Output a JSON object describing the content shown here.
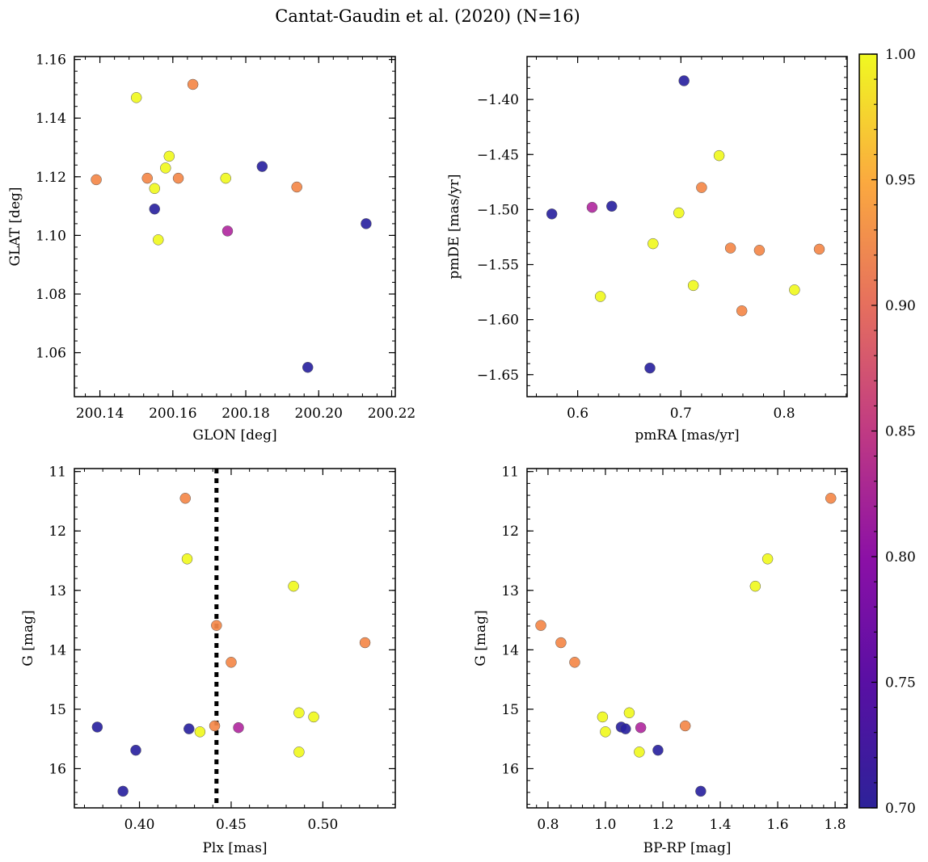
{
  "title": "Cantat-Gaudin et al. (2020) (N=16)",
  "colors": {
    "low": "#2a23a0",
    "mid": "#b12aa0",
    "hi": "#f48849",
    "top": "#f0f921"
  },
  "colorbar": {
    "min": 0.7,
    "max": 1.0,
    "ticks": [
      "0.70",
      "0.75",
      "0.80",
      "0.85",
      "0.90",
      "0.95",
      "1.00"
    ]
  },
  "chart_data": [
    {
      "type": "scatter",
      "xlabel": "GLON [deg]",
      "ylabel": "GLAT [deg]",
      "xlim": [
        200.133,
        200.221
      ],
      "ylim": [
        1.045,
        1.161
      ],
      "xticks": [
        "200.14",
        "200.16",
        "200.18",
        "200.20",
        "200.22"
      ],
      "yticks": [
        "1.06",
        "1.08",
        "1.10",
        "1.12",
        "1.14",
        "1.16"
      ],
      "points": [
        {
          "x": 200.139,
          "y": 1.119,
          "c": 0.9
        },
        {
          "x": 200.15,
          "y": 1.147,
          "c": 1.0
        },
        {
          "x": 200.153,
          "y": 1.1195,
          "c": 0.9
        },
        {
          "x": 200.155,
          "y": 1.116,
          "c": 1.0
        },
        {
          "x": 200.155,
          "y": 1.109,
          "c": 0.7
        },
        {
          "x": 200.156,
          "y": 1.0985,
          "c": 1.0
        },
        {
          "x": 200.158,
          "y": 1.123,
          "c": 1.0
        },
        {
          "x": 200.159,
          "y": 1.127,
          "c": 1.0
        },
        {
          "x": 200.1615,
          "y": 1.1195,
          "c": 0.9
        },
        {
          "x": 200.1655,
          "y": 1.1515,
          "c": 0.9
        },
        {
          "x": 200.1745,
          "y": 1.1195,
          "c": 1.0
        },
        {
          "x": 200.175,
          "y": 1.1015,
          "c": 0.8
        },
        {
          "x": 200.1845,
          "y": 1.1235,
          "c": 0.7
        },
        {
          "x": 200.194,
          "y": 1.1165,
          "c": 0.9
        },
        {
          "x": 200.197,
          "y": 1.055,
          "c": 0.7
        },
        {
          "x": 200.213,
          "y": 1.104,
          "c": 0.7
        }
      ]
    },
    {
      "type": "scatter",
      "xlabel": "pmRA [mas/yr]",
      "ylabel": "pmDE [mas/yr]",
      "xlim": [
        0.551,
        0.861
      ],
      "ylim": [
        -1.67,
        -1.361
      ],
      "xticks": [
        "0.6",
        "0.7",
        "0.8"
      ],
      "yticks": [
        "−1.65",
        "−1.60",
        "−1.55",
        "−1.50",
        "−1.45",
        "−1.40"
      ],
      "points": [
        {
          "x": 0.575,
          "y": -1.504,
          "c": 0.7
        },
        {
          "x": 0.614,
          "y": -1.498,
          "c": 0.8
        },
        {
          "x": 0.622,
          "y": -1.579,
          "c": 1.0
        },
        {
          "x": 0.633,
          "y": -1.497,
          "c": 0.7
        },
        {
          "x": 0.67,
          "y": -1.644,
          "c": 0.7
        },
        {
          "x": 0.673,
          "y": -1.531,
          "c": 1.0
        },
        {
          "x": 0.698,
          "y": -1.503,
          "c": 1.0
        },
        {
          "x": 0.703,
          "y": -1.383,
          "c": 0.7
        },
        {
          "x": 0.712,
          "y": -1.569,
          "c": 1.0
        },
        {
          "x": 0.72,
          "y": -1.48,
          "c": 0.9
        },
        {
          "x": 0.737,
          "y": -1.451,
          "c": 1.0
        },
        {
          "x": 0.748,
          "y": -1.535,
          "c": 0.9
        },
        {
          "x": 0.759,
          "y": -1.592,
          "c": 0.9
        },
        {
          "x": 0.776,
          "y": -1.537,
          "c": 0.9
        },
        {
          "x": 0.81,
          "y": -1.573,
          "c": 1.0
        },
        {
          "x": 0.834,
          "y": -1.536,
          "c": 0.9
        }
      ]
    },
    {
      "type": "scatter",
      "xlabel": "Plx [mas]",
      "ylabel": "G [mag]",
      "xlim": [
        0.3645,
        0.5395
      ],
      "ylim": [
        16.66,
        10.95
      ],
      "xticks": [
        "0.40",
        "0.45",
        "0.50"
      ],
      "yticks": [
        "11",
        "12",
        "13",
        "14",
        "15",
        "16"
      ],
      "vline": 0.442,
      "points": [
        {
          "x": 0.377,
          "y": 15.3,
          "c": 0.7
        },
        {
          "x": 0.391,
          "y": 16.38,
          "c": 0.7
        },
        {
          "x": 0.398,
          "y": 15.69,
          "c": 0.7
        },
        {
          "x": 0.425,
          "y": 11.45,
          "c": 0.9
        },
        {
          "x": 0.426,
          "y": 12.47,
          "c": 1.0
        },
        {
          "x": 0.427,
          "y": 15.33,
          "c": 0.7
        },
        {
          "x": 0.433,
          "y": 15.38,
          "c": 1.0
        },
        {
          "x": 0.442,
          "y": 13.59,
          "c": 0.9
        },
        {
          "x": 0.441,
          "y": 15.28,
          "c": 0.9
        },
        {
          "x": 0.45,
          "y": 14.21,
          "c": 0.9
        },
        {
          "x": 0.454,
          "y": 15.31,
          "c": 0.8
        },
        {
          "x": 0.484,
          "y": 12.93,
          "c": 1.0
        },
        {
          "x": 0.487,
          "y": 15.06,
          "c": 1.0
        },
        {
          "x": 0.487,
          "y": 15.72,
          "c": 1.0
        },
        {
          "x": 0.495,
          "y": 15.13,
          "c": 1.0
        },
        {
          "x": 0.523,
          "y": 13.88,
          "c": 0.9
        }
      ]
    },
    {
      "type": "scatter",
      "xlabel": "BP-RP [mag]",
      "ylabel": "G [mag]",
      "xlim": [
        0.727,
        1.842
      ],
      "ylim": [
        16.66,
        10.95
      ],
      "xticks": [
        "0.8",
        "1.0",
        "1.2",
        "1.4",
        "1.6",
        "1.8"
      ],
      "yticks": [
        "11",
        "12",
        "13",
        "14",
        "15",
        "16"
      ],
      "points": [
        {
          "x": 0.775,
          "y": 13.59,
          "c": 0.9
        },
        {
          "x": 0.845,
          "y": 13.88,
          "c": 0.9
        },
        {
          "x": 0.893,
          "y": 14.21,
          "c": 0.9
        },
        {
          "x": 0.99,
          "y": 15.13,
          "c": 1.0
        },
        {
          "x": 1.0,
          "y": 15.38,
          "c": 1.0
        },
        {
          "x": 1.055,
          "y": 15.3,
          "c": 0.7
        },
        {
          "x": 1.07,
          "y": 15.33,
          "c": 0.7
        },
        {
          "x": 1.083,
          "y": 15.06,
          "c": 1.0
        },
        {
          "x": 1.118,
          "y": 15.72,
          "c": 1.0
        },
        {
          "x": 1.123,
          "y": 15.31,
          "c": 0.8
        },
        {
          "x": 1.183,
          "y": 15.69,
          "c": 0.7
        },
        {
          "x": 1.278,
          "y": 15.28,
          "c": 0.9
        },
        {
          "x": 1.332,
          "y": 16.38,
          "c": 0.7
        },
        {
          "x": 1.522,
          "y": 12.93,
          "c": 1.0
        },
        {
          "x": 1.565,
          "y": 12.47,
          "c": 1.0
        },
        {
          "x": 1.785,
          "y": 11.45,
          "c": 0.9
        }
      ]
    }
  ]
}
